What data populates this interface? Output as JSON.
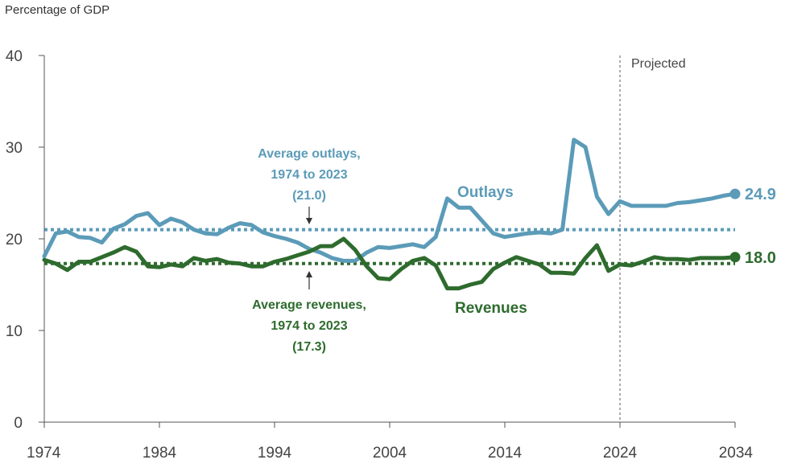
{
  "chart_data": {
    "type": "line",
    "unit_label": "Percentage of GDP",
    "x_ticks": [
      "1974",
      "1984",
      "1994",
      "2004",
      "2014",
      "2024",
      "2034"
    ],
    "y_ticks": [
      "0",
      "10",
      "20",
      "30",
      "40"
    ],
    "xlim": [
      1974,
      2034
    ],
    "ylim": [
      0,
      40
    ],
    "projected_start": 2024,
    "projected_label": "Projected",
    "colors": {
      "outlays": "#5b9bb8",
      "revenues": "#2e6b2e",
      "axis": "#555555",
      "divider": "#777777"
    },
    "series": [
      {
        "name": "Outlays",
        "key": "outlays",
        "end_label": "24.9",
        "points": [
          [
            1974,
            18.1
          ],
          [
            1975,
            20.6
          ],
          [
            1976,
            20.8
          ],
          [
            1977,
            20.2
          ],
          [
            1978,
            20.1
          ],
          [
            1979,
            19.6
          ],
          [
            1980,
            21.1
          ],
          [
            1981,
            21.6
          ],
          [
            1982,
            22.5
          ],
          [
            1983,
            22.8
          ],
          [
            1984,
            21.5
          ],
          [
            1985,
            22.2
          ],
          [
            1986,
            21.8
          ],
          [
            1987,
            21.0
          ],
          [
            1988,
            20.6
          ],
          [
            1989,
            20.5
          ],
          [
            1990,
            21.2
          ],
          [
            1991,
            21.7
          ],
          [
            1992,
            21.5
          ],
          [
            1993,
            20.7
          ],
          [
            1994,
            20.3
          ],
          [
            1995,
            20.0
          ],
          [
            1996,
            19.6
          ],
          [
            1997,
            18.9
          ],
          [
            1998,
            18.5
          ],
          [
            1999,
            17.9
          ],
          [
            2000,
            17.6
          ],
          [
            2001,
            17.6
          ],
          [
            2002,
            18.5
          ],
          [
            2003,
            19.1
          ],
          [
            2004,
            19.0
          ],
          [
            2005,
            19.2
          ],
          [
            2006,
            19.4
          ],
          [
            2007,
            19.1
          ],
          [
            2008,
            20.2
          ],
          [
            2009,
            24.4
          ],
          [
            2010,
            23.4
          ],
          [
            2011,
            23.4
          ],
          [
            2012,
            22.0
          ],
          [
            2013,
            20.6
          ],
          [
            2014,
            20.2
          ],
          [
            2015,
            20.4
          ],
          [
            2016,
            20.6
          ],
          [
            2017,
            20.7
          ],
          [
            2018,
            20.6
          ],
          [
            2019,
            21.0
          ],
          [
            2020,
            30.8
          ],
          [
            2021,
            30.0
          ],
          [
            2022,
            24.6
          ],
          [
            2023,
            22.7
          ],
          [
            2024,
            24.1
          ],
          [
            2025,
            23.6
          ],
          [
            2026,
            23.6
          ],
          [
            2027,
            23.6
          ],
          [
            2028,
            23.6
          ],
          [
            2029,
            23.9
          ],
          [
            2030,
            24.0
          ],
          [
            2031,
            24.2
          ],
          [
            2032,
            24.4
          ],
          [
            2033,
            24.7
          ],
          [
            2034,
            24.9
          ]
        ]
      },
      {
        "name": "Revenues",
        "key": "revenues",
        "end_label": "18.0",
        "points": [
          [
            1974,
            17.7
          ],
          [
            1975,
            17.3
          ],
          [
            1976,
            16.6
          ],
          [
            1977,
            17.5
          ],
          [
            1978,
            17.5
          ],
          [
            1979,
            18.0
          ],
          [
            1980,
            18.5
          ],
          [
            1981,
            19.1
          ],
          [
            1982,
            18.6
          ],
          [
            1983,
            17.0
          ],
          [
            1984,
            16.9
          ],
          [
            1985,
            17.2
          ],
          [
            1986,
            17.0
          ],
          [
            1987,
            17.9
          ],
          [
            1988,
            17.6
          ],
          [
            1989,
            17.8
          ],
          [
            1990,
            17.4
          ],
          [
            1991,
            17.3
          ],
          [
            1992,
            17.0
          ],
          [
            1993,
            17.0
          ],
          [
            1994,
            17.5
          ],
          [
            1995,
            17.8
          ],
          [
            1996,
            18.2
          ],
          [
            1997,
            18.6
          ],
          [
            1998,
            19.2
          ],
          [
            1999,
            19.2
          ],
          [
            2000,
            20.0
          ],
          [
            2001,
            18.8
          ],
          [
            2002,
            17.0
          ],
          [
            2003,
            15.7
          ],
          [
            2004,
            15.6
          ],
          [
            2005,
            16.7
          ],
          [
            2006,
            17.6
          ],
          [
            2007,
            17.9
          ],
          [
            2008,
            17.1
          ],
          [
            2009,
            14.6
          ],
          [
            2010,
            14.6
          ],
          [
            2011,
            15.0
          ],
          [
            2012,
            15.3
          ],
          [
            2013,
            16.7
          ],
          [
            2014,
            17.4
          ],
          [
            2015,
            18.0
          ],
          [
            2016,
            17.6
          ],
          [
            2017,
            17.2
          ],
          [
            2018,
            16.3
          ],
          [
            2019,
            16.3
          ],
          [
            2020,
            16.2
          ],
          [
            2021,
            17.9
          ],
          [
            2022,
            19.3
          ],
          [
            2023,
            16.5
          ],
          [
            2024,
            17.2
          ],
          [
            2025,
            17.1
          ],
          [
            2026,
            17.5
          ],
          [
            2027,
            18.0
          ],
          [
            2028,
            17.8
          ],
          [
            2029,
            17.8
          ],
          [
            2030,
            17.7
          ],
          [
            2031,
            17.9
          ],
          [
            2032,
            17.9
          ],
          [
            2033,
            17.9
          ],
          [
            2034,
            18.0
          ]
        ]
      }
    ],
    "averages": [
      {
        "key": "outlays",
        "value": 21.0,
        "label_lines": [
          "Average outlays,",
          "1974 to 2023",
          "(21.0)"
        ]
      },
      {
        "key": "revenues",
        "value": 17.3,
        "label_lines": [
          "Average revenues,",
          "1974 to 2023",
          "(17.3)"
        ]
      }
    ]
  }
}
